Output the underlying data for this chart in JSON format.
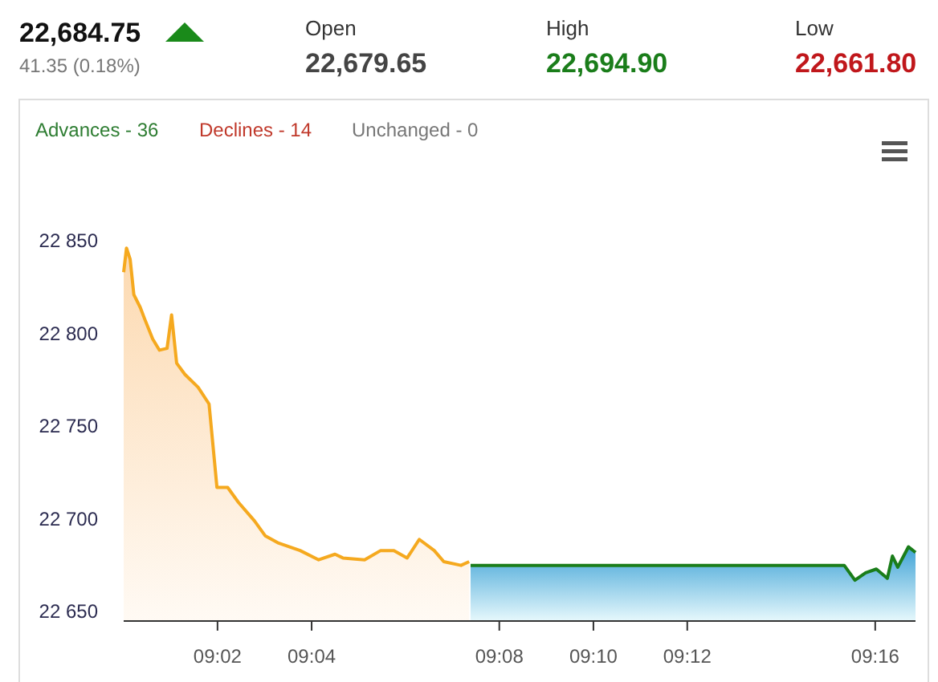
{
  "chart_data": {
    "type": "area",
    "annotations": [
      "22,684.75",
      "41.35 (0.18%)",
      "Open",
      "22,679.65",
      "High",
      "22,694.90",
      "Low",
      "22,661.80",
      "Advances - 36",
      "Declines - 14",
      "Unchanged - 0"
    ],
    "xlim": [
      9.0,
      9.281
    ],
    "xticks": [
      {
        "value": 9.0333,
        "label": "09:02"
      },
      {
        "value": 9.0667,
        "label": "09:04"
      },
      {
        "value": 9.1333,
        "label": "09:08"
      },
      {
        "value": 9.1667,
        "label": "09:10"
      },
      {
        "value": 9.2,
        "label": "09:12"
      },
      {
        "value": 9.2667,
        "label": "09:16"
      }
    ],
    "ylim": [
      22645,
      22850
    ],
    "yticks": [
      {
        "value": 22650,
        "label": "22 650"
      },
      {
        "value": 22700,
        "label": "22 700"
      },
      {
        "value": 22750,
        "label": "22 750"
      },
      {
        "value": 22800,
        "label": "22 800"
      },
      {
        "value": 22850,
        "label": "22 850"
      }
    ],
    "grid": false,
    "series": [
      {
        "color": "#f5a91f",
        "x": [
          9.0,
          9.001,
          9.0023,
          9.0036,
          9.0059,
          9.0074,
          9.0103,
          9.0127,
          9.0154,
          9.017,
          9.0188,
          9.0217,
          9.0264,
          9.0303,
          9.0331,
          9.0369,
          9.0407,
          9.0464,
          9.0502,
          9.055,
          9.0626,
          9.0692,
          9.075,
          9.0778,
          9.0855,
          9.0912,
          9.0959,
          9.1006,
          9.1049,
          9.1102,
          9.1136,
          9.1197,
          9.1226
        ],
        "values": [
          22833,
          22846,
          22840,
          22821,
          22814,
          22808,
          22797,
          22791,
          22792,
          22810,
          22784,
          22778,
          22771,
          22762,
          22717,
          22717,
          22709,
          22699,
          22691,
          22687,
          22683,
          22678,
          22681,
          22679,
          22678,
          22683,
          22683,
          22679,
          22689,
          22683,
          22677,
          22675,
          22677
        ]
      },
      {
        "color": "#1a7d1a",
        "x": [
          9.1231,
          9.2557,
          9.2595,
          9.2633,
          9.2671,
          9.271,
          9.2728,
          9.2747,
          9.2785,
          9.281
        ],
        "values": [
          22675,
          22675,
          22667,
          22671,
          22673,
          22668,
          22680,
          22674,
          22685,
          22682
        ]
      }
    ]
  }
}
